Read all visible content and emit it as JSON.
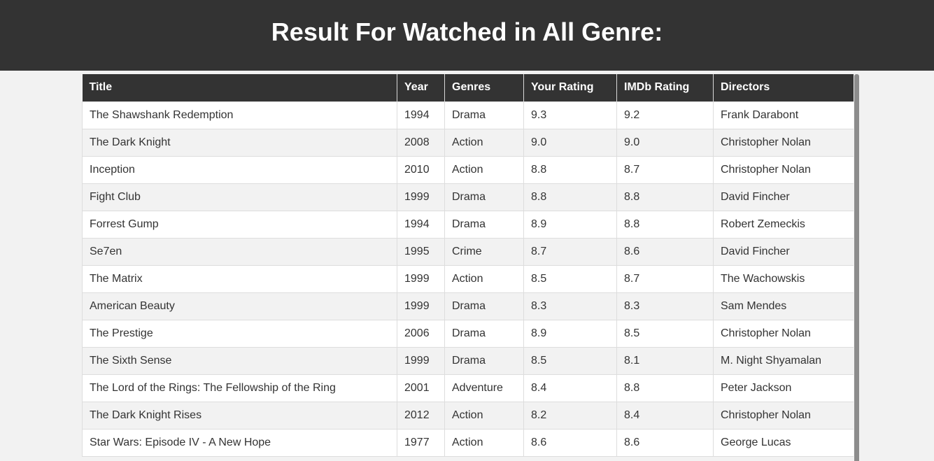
{
  "page": {
    "title": "Result For Watched in All Genre:"
  },
  "table": {
    "columns": [
      "Title",
      "Year",
      "Genres",
      "Your Rating",
      "IMDb Rating",
      "Directors"
    ],
    "rows": [
      [
        "The Shawshank Redemption",
        "1994",
        "Drama",
        "9.3",
        "9.2",
        "Frank Darabont"
      ],
      [
        "The Dark Knight",
        "2008",
        "Action",
        "9.0",
        "9.0",
        "Christopher Nolan"
      ],
      [
        "Inception",
        "2010",
        "Action",
        "8.8",
        "8.7",
        "Christopher Nolan"
      ],
      [
        "Fight Club",
        "1999",
        "Drama",
        "8.8",
        "8.8",
        "David Fincher"
      ],
      [
        "Forrest Gump",
        "1994",
        "Drama",
        "8.9",
        "8.8",
        "Robert Zemeckis"
      ],
      [
        "Se7en",
        "1995",
        "Crime",
        "8.7",
        "8.6",
        "David Fincher"
      ],
      [
        "The Matrix",
        "1999",
        "Action",
        "8.5",
        "8.7",
        "The Wachowskis"
      ],
      [
        "American Beauty",
        "1999",
        "Drama",
        "8.3",
        "8.3",
        "Sam Mendes"
      ],
      [
        "The Prestige",
        "2006",
        "Drama",
        "8.9",
        "8.5",
        "Christopher Nolan"
      ],
      [
        "The Sixth Sense",
        "1999",
        "Drama",
        "8.5",
        "8.1",
        "M. Night Shyamalan"
      ],
      [
        "The Lord of the Rings: The Fellowship of the Ring",
        "2001",
        "Adventure",
        "8.4",
        "8.8",
        "Peter Jackson"
      ],
      [
        "The Dark Knight Rises",
        "2012",
        "Action",
        "8.2",
        "8.4",
        "Christopher Nolan"
      ],
      [
        "Star Wars: Episode IV - A New Hope",
        "1977",
        "Action",
        "8.6",
        "8.6",
        "George Lucas"
      ]
    ]
  },
  "colors": {
    "header_bg": "#333333",
    "page_bg": "#f2f2f2",
    "stripe": "#f2f2f2"
  }
}
